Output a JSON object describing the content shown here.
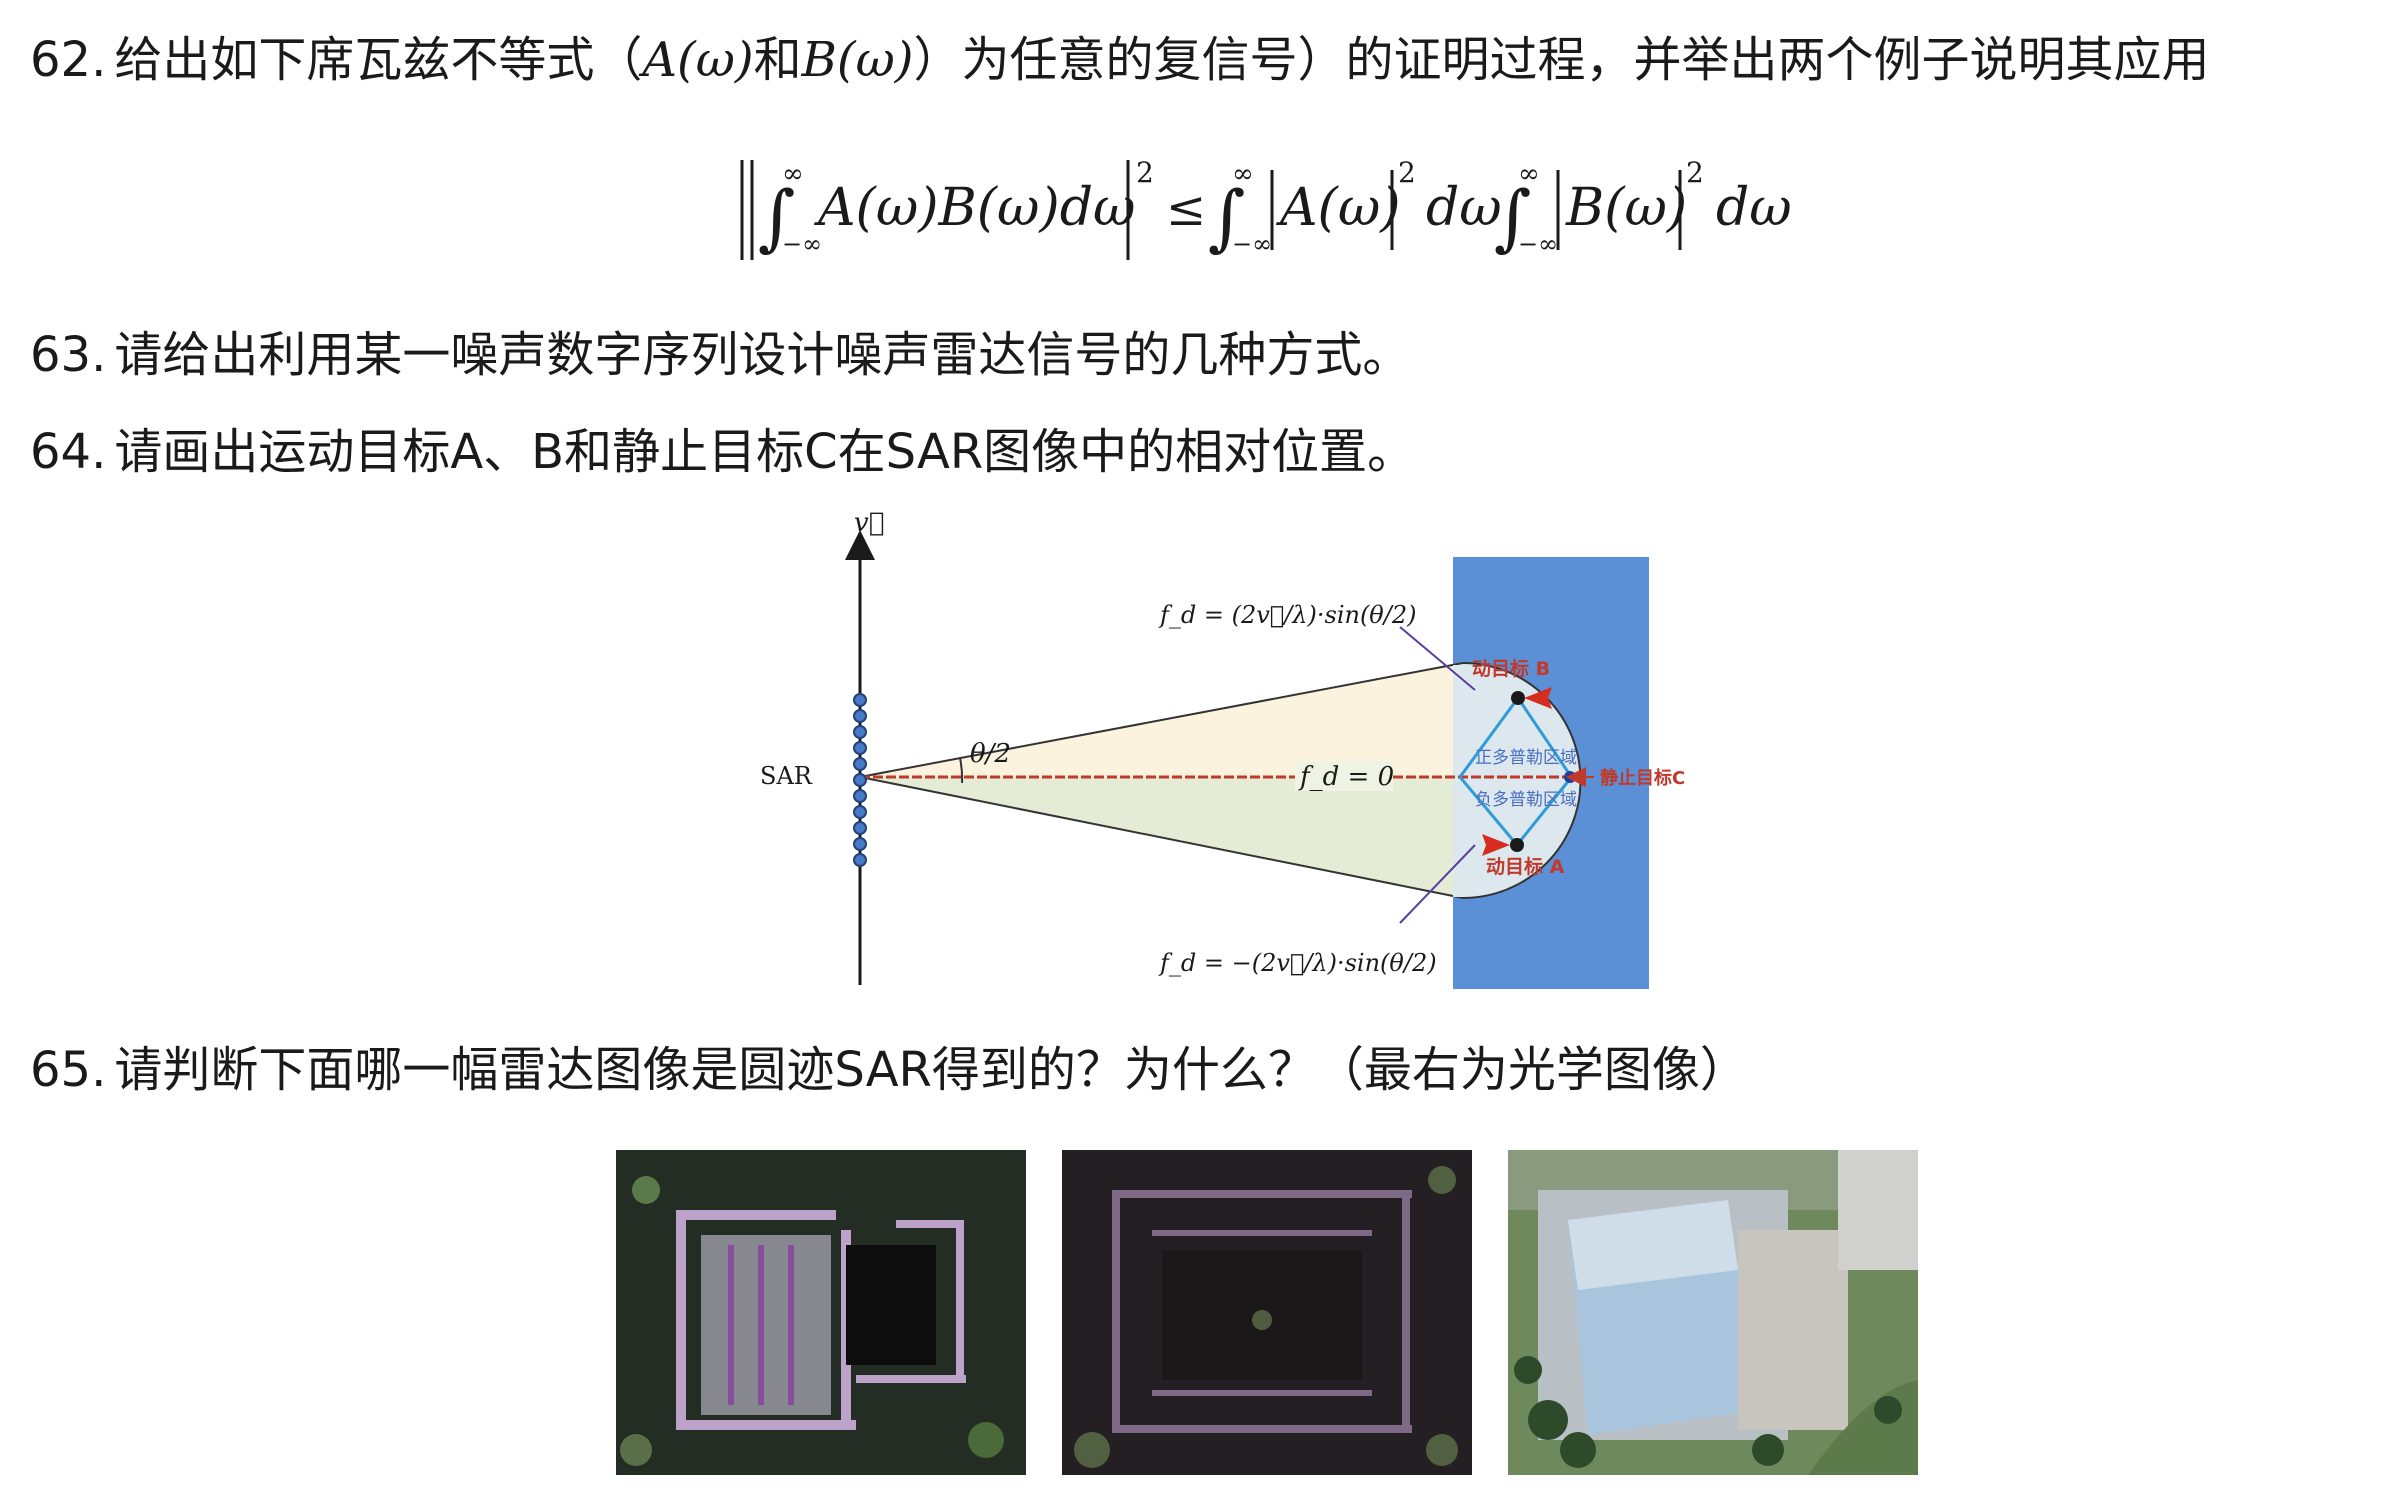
{
  "q62": {
    "num": "62.",
    "text_a": "给出如下席瓦兹不等式（",
    "math_a": "A(ω)",
    "text_b": "和",
    "math_b": "B(ω)",
    "text_c": "）为任意的复信号）的证明过程，并举出两个例子说明其应用",
    "equation": "|∫₋∞^∞ A(ω)B(ω)dω|² ≤ ∫₋∞^∞ |A(ω)|² dω ∫₋∞^∞ |B(ω)|² dω"
  },
  "q63": {
    "num": "63.",
    "text": "请给出利用某一噪声数字序列设计噪声雷达信号的几种方式。"
  },
  "q64": {
    "num": "64.",
    "text": "请画出运动目标A、B和静止目标C在SAR图像中的相对位置。"
  },
  "diagram": {
    "v_label": "v⃗",
    "sar_label": "SAR",
    "theta_label": "θ/2",
    "fd_zero": "f_d = 0",
    "fd_pos": "f_d = (2v⃗/λ)·sin(θ/2)",
    "fd_neg": "f_d = −(2v⃗/λ)·sin(θ/2)",
    "target_b": "动目标 B",
    "target_a": "动目标 A",
    "target_c": "静止目标C",
    "pos_region": "正多普勒区域",
    "neg_region": "负多普勒区域",
    "colors": {
      "scene": "#5b8fd6",
      "upper_cone": "#fbf3dd",
      "lower_cone": "#e4ecd6",
      "arrow": "#d62d20",
      "axis": "#c0392b"
    }
  },
  "q65": {
    "num": "65.",
    "text": "请判断下面哪一幅雷达图像是圆迹SAR得到的？为什么？（最右为光学图像）"
  },
  "images": [
    "SAR image 1",
    "SAR image 2",
    "Optical image"
  ]
}
